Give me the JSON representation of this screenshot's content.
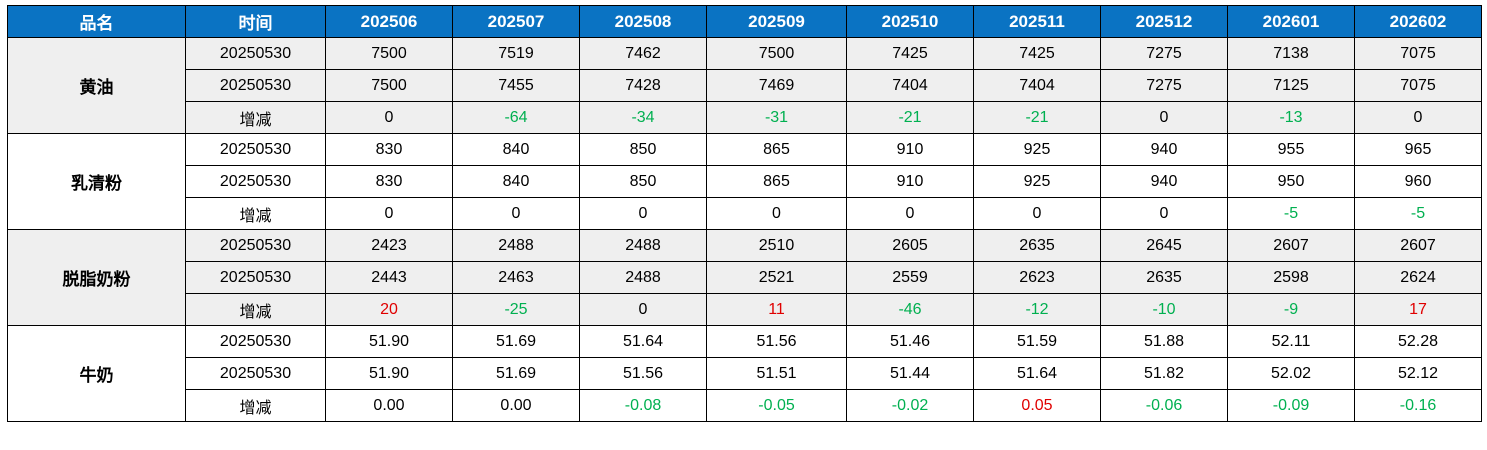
{
  "chart_data": {
    "type": "table",
    "header": {
      "product": "品名",
      "time": "时间",
      "months": [
        "202506",
        "202507",
        "202508",
        "202509",
        "202510",
        "202511",
        "202512",
        "202601",
        "202602"
      ]
    },
    "change_label": "增减",
    "groups": [
      {
        "name": "黄油",
        "rows": [
          {
            "time": "20250530",
            "change": false,
            "values": [
              "7500",
              "7519",
              "7462",
              "7500",
              "7425",
              "7425",
              "7275",
              "7138",
              "7075"
            ]
          },
          {
            "time": "20250530",
            "change": false,
            "values": [
              "7500",
              "7455",
              "7428",
              "7469",
              "7404",
              "7404",
              "7275",
              "7125",
              "7075"
            ]
          },
          {
            "time": "增减",
            "change": true,
            "values": [
              "0",
              "-64",
              "-34",
              "-31",
              "-21",
              "-21",
              "0",
              "-13",
              "0"
            ]
          }
        ]
      },
      {
        "name": "乳清粉",
        "rows": [
          {
            "time": "20250530",
            "change": false,
            "values": [
              "830",
              "840",
              "850",
              "865",
              "910",
              "925",
              "940",
              "955",
              "965"
            ]
          },
          {
            "time": "20250530",
            "change": false,
            "values": [
              "830",
              "840",
              "850",
              "865",
              "910",
              "925",
              "940",
              "950",
              "960"
            ]
          },
          {
            "time": "增减",
            "change": true,
            "values": [
              "0",
              "0",
              "0",
              "0",
              "0",
              "0",
              "0",
              "-5",
              "-5"
            ]
          }
        ]
      },
      {
        "name": "脱脂奶粉",
        "rows": [
          {
            "time": "20250530",
            "change": false,
            "values": [
              "2423",
              "2488",
              "2488",
              "2510",
              "2605",
              "2635",
              "2645",
              "2607",
              "2607"
            ]
          },
          {
            "time": "20250530",
            "change": false,
            "values": [
              "2443",
              "2463",
              "2488",
              "2521",
              "2559",
              "2623",
              "2635",
              "2598",
              "2624"
            ]
          },
          {
            "time": "增减",
            "change": true,
            "values": [
              "20",
              "-25",
              "0",
              "11",
              "-46",
              "-12",
              "-10",
              "-9",
              "17"
            ]
          }
        ]
      },
      {
        "name": "牛奶",
        "rows": [
          {
            "time": "20250530",
            "change": false,
            "values": [
              "51.90",
              "51.69",
              "51.64",
              "51.56",
              "51.46",
              "51.59",
              "51.88",
              "52.11",
              "52.28"
            ]
          },
          {
            "time": "20250530",
            "change": false,
            "values": [
              "51.90",
              "51.69",
              "51.56",
              "51.51",
              "51.44",
              "51.64",
              "51.82",
              "52.02",
              "52.12"
            ]
          },
          {
            "time": "增减",
            "change": true,
            "values": [
              "0.00",
              "0.00",
              "-0.08",
              "-0.05",
              "-0.02",
              "0.05",
              "-0.06",
              "-0.09",
              "-0.16"
            ]
          }
        ]
      }
    ]
  },
  "colors": {
    "header_bg": "#0A73C3",
    "header_text": "#FFFFFF",
    "border": "#000000",
    "group_alt_bg": "#EFEFEF",
    "group_white_bg": "#FFFFFF",
    "positive_change": "#E00000",
    "negative_change": "#00B050",
    "text": "#000000"
  }
}
